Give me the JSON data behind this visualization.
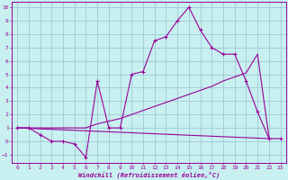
{
  "bg_color": "#c8f0f0",
  "grid_color": "#a0c8d8",
  "line_color": "#990099",
  "xlabel": "Windchill (Refroidissement éolien,°C)",
  "xlim": [
    -0.5,
    23.5
  ],
  "ylim": [
    -1.6,
    10.4
  ],
  "xticks": [
    0,
    1,
    2,
    3,
    4,
    5,
    6,
    7,
    8,
    9,
    10,
    11,
    12,
    13,
    14,
    15,
    16,
    17,
    18,
    19,
    20,
    21,
    22,
    23
  ],
  "yticks": [
    -1,
    0,
    1,
    2,
    3,
    4,
    5,
    6,
    7,
    8,
    9,
    10
  ],
  "line1_x": [
    0,
    1,
    2,
    3,
    4,
    5,
    6,
    7,
    8,
    9,
    10,
    11,
    12,
    13,
    14,
    15,
    16,
    17,
    18,
    19,
    20,
    21,
    22,
    23
  ],
  "line1_y": [
    1.0,
    1.0,
    0.5,
    0.0,
    0.0,
    -0.2,
    -1.2,
    4.5,
    1.0,
    1.0,
    5.0,
    5.2,
    7.5,
    7.8,
    9.0,
    10.0,
    8.3,
    7.0,
    6.5,
    6.5,
    4.5,
    2.2,
    0.2,
    0.2
  ],
  "line2_x": [
    0,
    22
  ],
  "line2_y": [
    1.0,
    0.2
  ],
  "line3_x": [
    0,
    1,
    2,
    3,
    4,
    5,
    6,
    7,
    8,
    9,
    10,
    11,
    12,
    13,
    14,
    15,
    16,
    17,
    18,
    19,
    20,
    21,
    22
  ],
  "line3_y": [
    1.0,
    1.0,
    1.0,
    1.0,
    1.0,
    1.0,
    1.0,
    1.3,
    1.5,
    1.7,
    2.0,
    2.3,
    2.6,
    2.9,
    3.2,
    3.5,
    3.8,
    4.1,
    4.5,
    4.8,
    5.1,
    6.5,
    0.3
  ]
}
